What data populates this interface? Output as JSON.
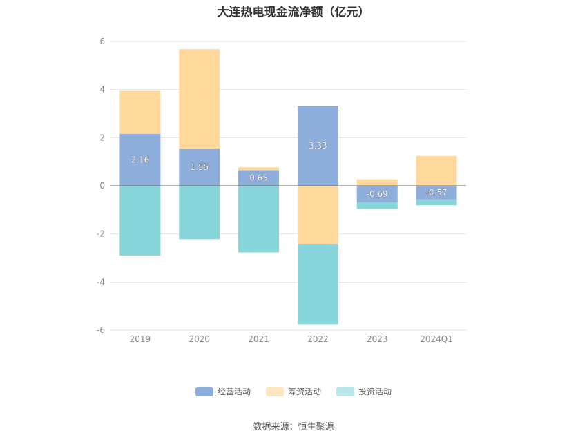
{
  "chart_data": {
    "type": "bar",
    "stacked": true,
    "title": "大连热电现金流净额（亿元）",
    "categories": [
      "2019",
      "2020",
      "2021",
      "2022",
      "2023",
      "2024Q1"
    ],
    "ylim": [
      -6,
      6
    ],
    "yticks": [
      6,
      4,
      2,
      0,
      -2,
      -4,
      -6
    ],
    "grid": true,
    "legend_position": "bottom",
    "series": [
      {
        "name": "经营活动",
        "color": "#8eaedb",
        "values": [
          2.16,
          1.55,
          0.65,
          3.33,
          -0.69,
          -0.57
        ],
        "labels": [
          "2.16",
          "1.55",
          "0.65",
          "3.33",
          "-0.69",
          "-0.57"
        ]
      },
      {
        "name": "筹资活动",
        "color": "#fed99b",
        "values": [
          1.79,
          4.13,
          0.12,
          -2.41,
          0.27,
          1.24
        ]
      },
      {
        "name": "投资活动",
        "color": "#86d5d8",
        "values": [
          -2.9,
          -2.22,
          -2.77,
          -3.34,
          -0.27,
          -0.24
        ]
      }
    ],
    "legend_swatch_colors": [
      "#8eaedb",
      "#fee6c0",
      "#b9e6e8"
    ]
  },
  "source": "数据来源：恒生聚源"
}
